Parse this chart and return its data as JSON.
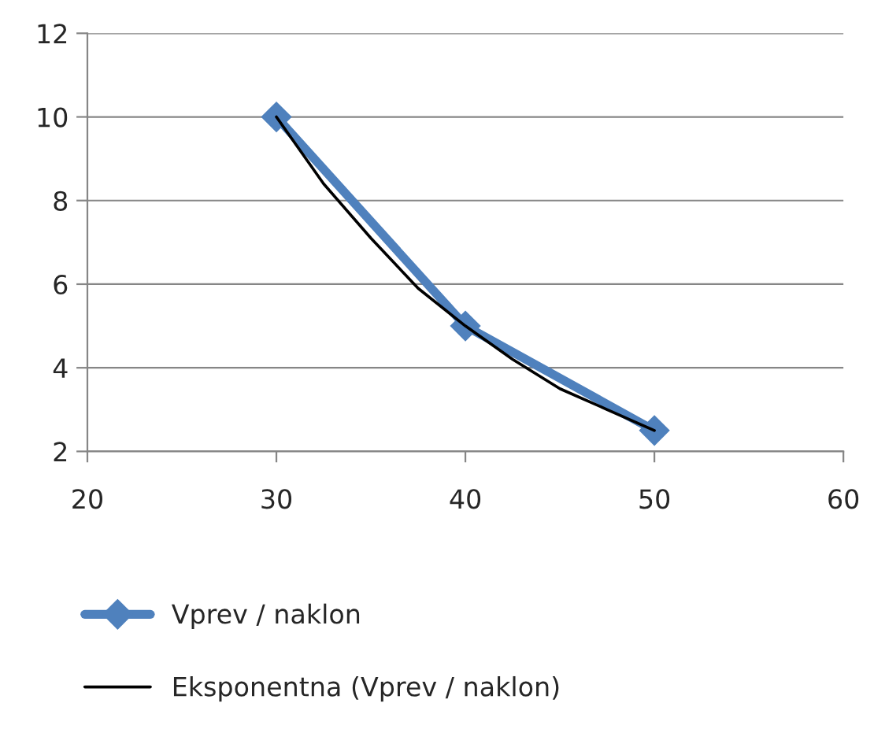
{
  "chart_data": {
    "type": "line",
    "xlim": [
      20,
      60
    ],
    "xticks": [
      20,
      30,
      40,
      50,
      60
    ],
    "ylim": [
      2,
      12
    ],
    "yticks": [
      2,
      4,
      6,
      8,
      10,
      12
    ],
    "grid": "y",
    "legend": "bottom",
    "series": [
      {
        "name": "Vprev / naklon",
        "color": "#4f81bd",
        "marker": "diamond",
        "x": [
          30,
          40,
          50
        ],
        "values": [
          10,
          5,
          2.5
        ]
      },
      {
        "name": "Eksponentna (Vprev / naklon)",
        "color": "#000000",
        "marker": "none",
        "line_style": "solid",
        "x": [
          30,
          32.5,
          35,
          37.5,
          40,
          42.5,
          45,
          47.5,
          50
        ],
        "values": [
          10,
          8.4,
          7.1,
          5.9,
          5,
          4.2,
          3.5,
          3.0,
          2.5
        ]
      }
    ]
  }
}
